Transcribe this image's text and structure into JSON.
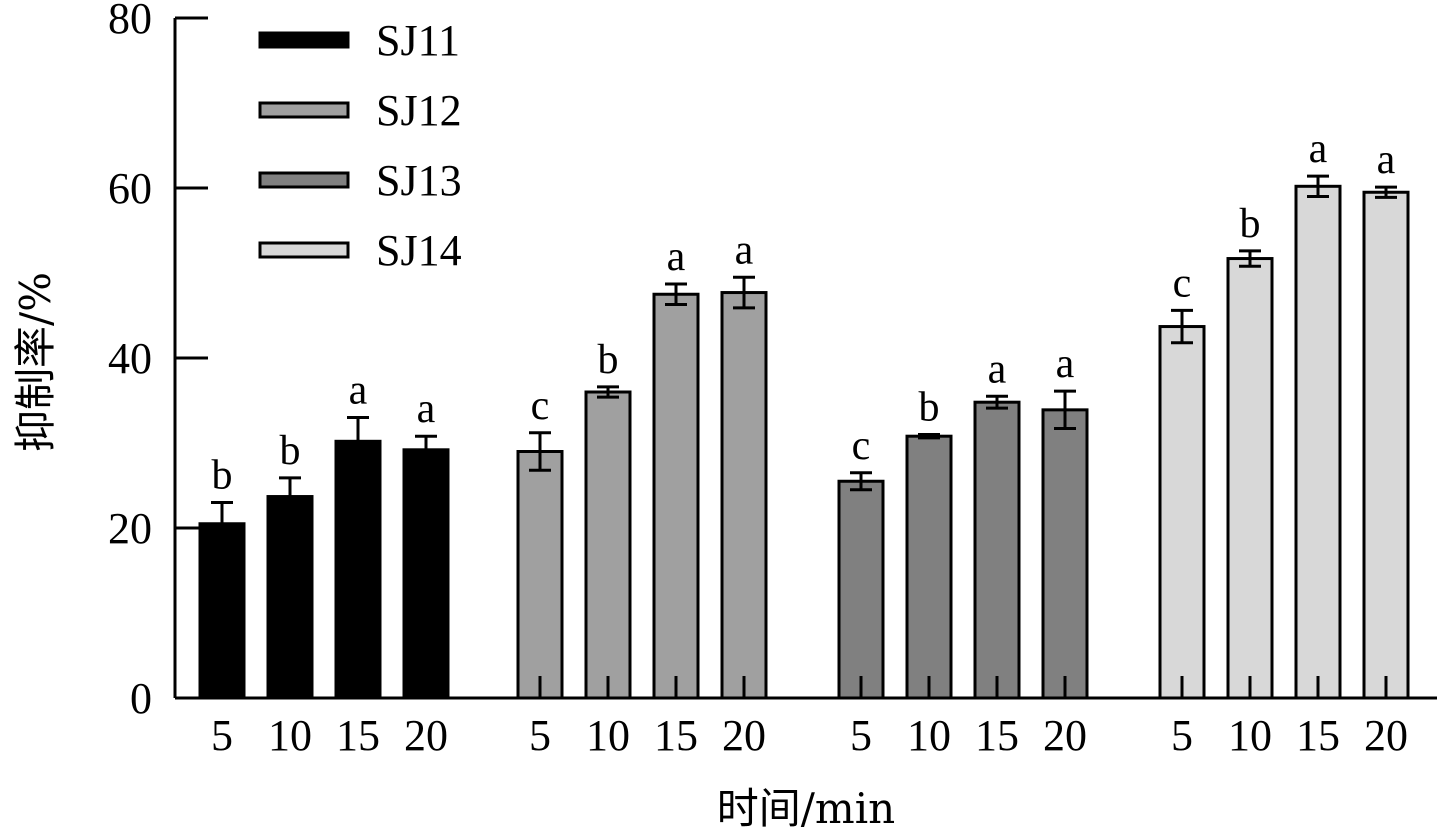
{
  "chart_data": {
    "type": "bar",
    "xlabel": "时间/min",
    "ylabel": "抑制率/%",
    "ylim": [
      0,
      80
    ],
    "yticks": [
      "0",
      "20",
      "40",
      "60",
      "80"
    ],
    "grid": false,
    "legend_position": "top-left",
    "categories": [
      "5",
      "10",
      "15",
      "20"
    ],
    "series": [
      {
        "name": "SJ11",
        "color": "#000000",
        "values": [
          20.5,
          23.7,
          30.2,
          29.2
        ],
        "errors": [
          2.5,
          2.2,
          2.8,
          1.6
        ],
        "letters": [
          "b",
          "b",
          "a",
          "a"
        ]
      },
      {
        "name": "SJ12",
        "color": "#a0a0a0",
        "values": [
          29.0,
          36.0,
          47.5,
          47.7
        ],
        "errors": [
          2.2,
          0.6,
          1.2,
          1.8
        ],
        "letters": [
          "c",
          "b",
          "a",
          "a"
        ]
      },
      {
        "name": "SJ13",
        "color": "#808080",
        "values": [
          25.5,
          30.8,
          34.8,
          33.9
        ],
        "errors": [
          1.0,
          0.2,
          0.7,
          2.2
        ],
        "letters": [
          "c",
          "b",
          "a",
          "a"
        ]
      },
      {
        "name": "SJ14",
        "color": "#d8d8d8",
        "values": [
          43.7,
          51.7,
          60.2,
          59.5
        ],
        "errors": [
          1.9,
          0.9,
          1.2,
          0.6
        ],
        "letters": [
          "c",
          "b",
          "a",
          "a"
        ]
      }
    ]
  }
}
